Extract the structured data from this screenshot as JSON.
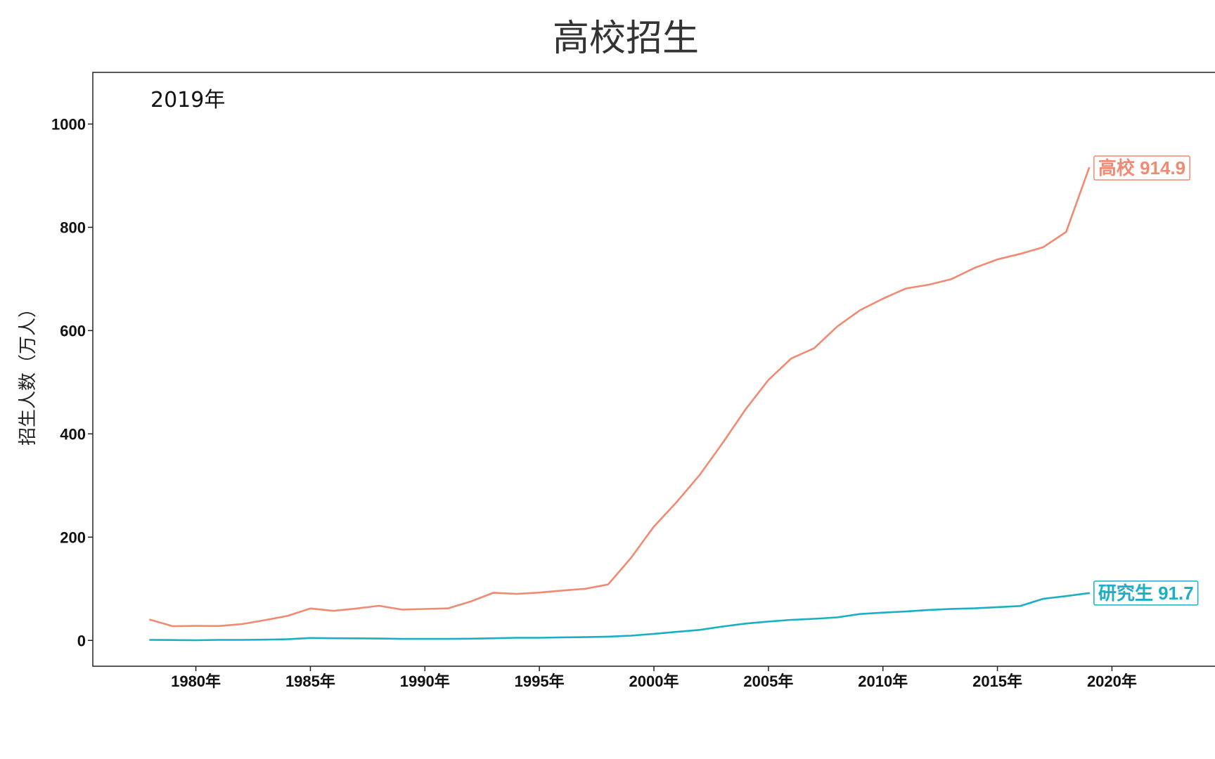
{
  "chart_data": {
    "type": "line",
    "title": "高校招生",
    "annotation": "2019年",
    "xlabel": "",
    "ylabel": "招生人数（万人）",
    "x_unit_suffix": "年",
    "xlim": [
      1975.5,
      2024.5
    ],
    "ylim": [
      -50,
      1100
    ],
    "x_ticks": [
      1980,
      1985,
      1990,
      1995,
      2000,
      2005,
      2010,
      2015,
      2020
    ],
    "x_tick_labels": [
      "1980年",
      "1985年",
      "1990年",
      "1995年",
      "2000年",
      "2005年",
      "2010年",
      "2015年",
      "2020年"
    ],
    "y_ticks": [
      0,
      200,
      400,
      600,
      800,
      1000
    ],
    "y_tick_labels": [
      "0",
      "200",
      "400",
      "600",
      "800",
      "1000"
    ],
    "grid": false,
    "legend": "none",
    "x": [
      1978,
      1979,
      1980,
      1981,
      1982,
      1983,
      1984,
      1985,
      1986,
      1987,
      1988,
      1989,
      1990,
      1991,
      1992,
      1993,
      1994,
      1995,
      1996,
      1997,
      1998,
      1999,
      2000,
      2001,
      2002,
      2003,
      2004,
      2005,
      2006,
      2007,
      2008,
      2009,
      2010,
      2011,
      2012,
      2013,
      2014,
      2015,
      2016,
      2017,
      2018,
      2019
    ],
    "series": [
      {
        "name": "高校",
        "color": "#F08A72",
        "end_label": "高校 914.9",
        "values": [
          40.2,
          27.5,
          28.1,
          27.9,
          31.5,
          39.1,
          47.5,
          61.9,
          57.2,
          61.7,
          67.0,
          59.7,
          60.9,
          62.0,
          75.4,
          92.4,
          90.0,
          92.6,
          96.6,
          100.0,
          108.4,
          159.7,
          220.6,
          268.3,
          320.5,
          382.2,
          447.3,
          504.5,
          546.1,
          565.9,
          607.7,
          639.5,
          661.8,
          681.5,
          688.8,
          699.8,
          721.4,
          737.8,
          748.6,
          761.5,
          791.0,
          914.9
        ]
      },
      {
        "name": "研究生",
        "color": "#1AAFC4",
        "end_label": "研究生 91.7",
        "values": [
          1.1,
          0.8,
          0.4,
          1.0,
          1.1,
          1.5,
          2.3,
          4.7,
          4.1,
          4.0,
          3.6,
          2.9,
          3.0,
          3.0,
          3.3,
          4.2,
          5.1,
          5.1,
          5.9,
          6.4,
          7.3,
          9.2,
          12.8,
          16.5,
          20.3,
          26.9,
          32.6,
          36.5,
          39.8,
          41.9,
          44.6,
          51.1,
          53.8,
          56.0,
          59.0,
          61.1,
          62.1,
          64.5,
          66.7,
          80.6,
          85.8,
          91.7
        ]
      }
    ]
  }
}
